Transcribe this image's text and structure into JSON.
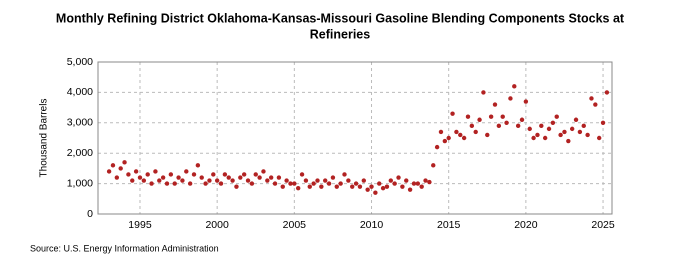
{
  "chart_data": {
    "type": "scatter",
    "title": [
      "Monthly Refining District Oklahoma-Kansas-Missouri Gasoline Blending Components Stocks at",
      "Refineries"
    ],
    "ylabel": "Thousand Barrels",
    "source": "Source: U.S. Energy Information Administration",
    "xlim": [
      1992.28,
      2025.58
    ],
    "xticks": [
      1995,
      2000,
      2005,
      2010,
      2015,
      2020,
      2025
    ],
    "ylim": [
      0,
      5000
    ],
    "yticks": [
      {
        "value": 0,
        "label": "0"
      },
      {
        "value": 1000,
        "label": "1,000"
      },
      {
        "value": 2000,
        "label": "2,000"
      },
      {
        "value": 3000,
        "label": "3,000"
      },
      {
        "value": 4000,
        "label": "4,000"
      },
      {
        "value": 5000,
        "label": "5,000"
      }
    ],
    "grid": true,
    "series": [
      {
        "color": "#b22222",
        "x": [
          1993.0,
          1993.25,
          1993.5,
          1993.75,
          1994.0,
          1994.25,
          1994.5,
          1994.75,
          1995.0,
          1995.25,
          1995.5,
          1995.75,
          1996.0,
          1996.25,
          1996.5,
          1996.75,
          1997.0,
          1997.25,
          1997.5,
          1997.75,
          1998.0,
          1998.25,
          1998.5,
          1998.75,
          1999.0,
          1999.25,
          1999.5,
          1999.75,
          2000.0,
          2000.25,
          2000.5,
          2000.75,
          2001.0,
          2001.25,
          2001.5,
          2001.75,
          2002.0,
          2002.25,
          2002.5,
          2002.75,
          2003.0,
          2003.25,
          2003.5,
          2003.75,
          2004.0,
          2004.25,
          2004.5,
          2004.75,
          2005.0,
          2005.25,
          2005.5,
          2005.75,
          2006.0,
          2006.25,
          2006.5,
          2006.75,
          2007.0,
          2007.25,
          2007.5,
          2007.75,
          2008.0,
          2008.25,
          2008.5,
          2008.75,
          2009.0,
          2009.25,
          2009.5,
          2009.75,
          2010.0,
          2010.25,
          2010.5,
          2010.75,
          2011.0,
          2011.25,
          2011.5,
          2011.75,
          2012.0,
          2012.25,
          2012.5,
          2012.75,
          2013.0,
          2013.25,
          2013.5,
          2013.75,
          2014.0,
          2014.25,
          2014.5,
          2014.75,
          2015.0,
          2015.25,
          2015.5,
          2015.75,
          2016.0,
          2016.25,
          2016.5,
          2016.75,
          2017.0,
          2017.25,
          2017.5,
          2017.75,
          2018.0,
          2018.25,
          2018.5,
          2018.75,
          2019.0,
          2019.25,
          2019.5,
          2019.75,
          2020.0,
          2020.25,
          2020.5,
          2020.75,
          2021.0,
          2021.25,
          2021.5,
          2021.75,
          2022.0,
          2022.25,
          2022.5,
          2022.75,
          2023.0,
          2023.25,
          2023.5,
          2023.75,
          2024.0,
          2024.25,
          2024.5,
          2024.75,
          2025.0,
          2025.25
        ],
        "values": [
          1400,
          1600,
          1200,
          1500,
          1700,
          1300,
          1100,
          1400,
          1200,
          1100,
          1300,
          1000,
          1400,
          1100,
          1200,
          1000,
          1300,
          1000,
          1200,
          1100,
          1400,
          1000,
          1300,
          1600,
          1200,
          1000,
          1100,
          1300,
          1100,
          1000,
          1300,
          1200,
          1100,
          900,
          1200,
          1300,
          1100,
          1000,
          1300,
          1200,
          1400,
          1100,
          1200,
          1000,
          1200,
          900,
          1100,
          1000,
          1000,
          850,
          1300,
          1100,
          900,
          1000,
          1100,
          900,
          1100,
          1000,
          1200,
          900,
          1000,
          1300,
          1100,
          900,
          1000,
          900,
          1100,
          800,
          900,
          700,
          1000,
          850,
          900,
          1100,
          1000,
          1200,
          900,
          1100,
          800,
          1000,
          1000,
          900,
          1100,
          1050,
          1600,
          2200,
          2700,
          2400,
          2500,
          3300,
          2700,
          2600,
          2500,
          3200,
          2900,
          2700,
          3100,
          4000,
          2600,
          3200,
          3600,
          2900,
          3200,
          3000,
          3800,
          4200,
          2900,
          3100,
          3700,
          2800,
          2500,
          2600,
          2900,
          2500,
          2800,
          3000,
          3200,
          2600,
          2700,
          2400,
          2800,
          3100,
          2700,
          2900,
          2600,
          3800,
          3600,
          2500,
          3000,
          4000
        ]
      }
    ]
  }
}
